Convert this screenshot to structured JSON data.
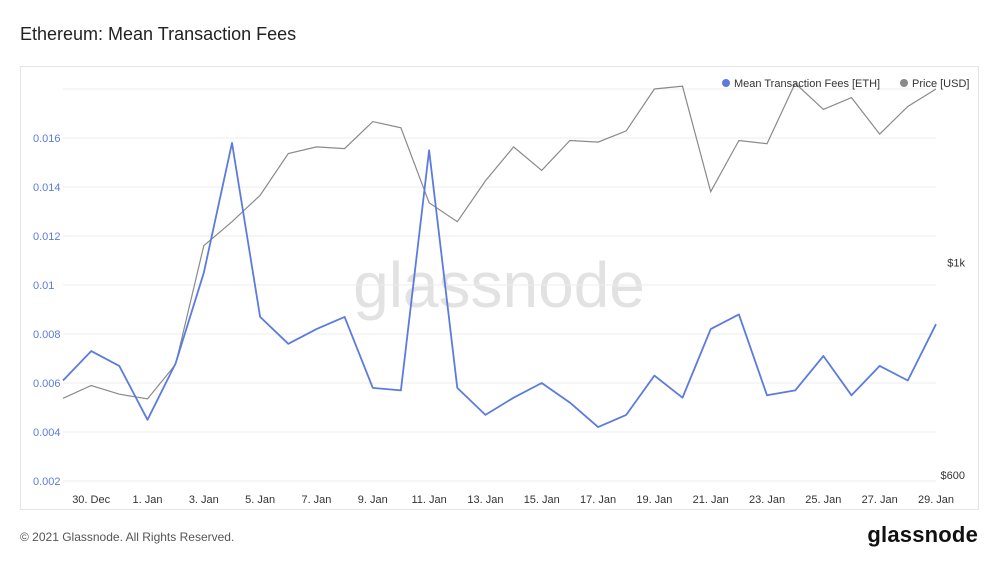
{
  "title": "Ethereum: Mean Transaction Fees",
  "footer": {
    "copyright": "© 2021 Glassnode. All Rights Reserved.",
    "logo": "glassnode"
  },
  "watermark": "glassnode",
  "colors": {
    "fees": "#5b7bdf",
    "price": "#8a8a8a",
    "left_axis_text": "#5b7bdf",
    "grid": "#ececec"
  },
  "chart_data": {
    "type": "line",
    "title": "Ethereum: Mean Transaction Fees",
    "x_ticks": [
      "30. Dec",
      "1. Jan",
      "3. Jan",
      "5. Jan",
      "7. Jan",
      "9. Jan",
      "11. Jan",
      "13. Jan",
      "15. Jan",
      "17. Jan",
      "19. Jan",
      "21. Jan",
      "23. Jan",
      "25. Jan",
      "27. Jan",
      "29. Jan"
    ],
    "y_left": {
      "ticks": [
        "0.002",
        "0.004",
        "0.006",
        "0.008",
        "0.01",
        "0.012",
        "0.014",
        "0.016"
      ],
      "min": 0.002,
      "max": 0.018
    },
    "y_right": {
      "ticks": [
        "$600",
        "$1k"
      ],
      "scale": "log",
      "min": 600,
      "max": 1500
    },
    "legend_position": "top-right",
    "grid": true,
    "series": [
      {
        "name": "Mean Transaction Fees [ETH]",
        "axis": "left",
        "values": [
          0.0061,
          0.0073,
          0.0067,
          0.0045,
          0.0068,
          0.0105,
          0.0158,
          0.0087,
          0.0076,
          0.0082,
          0.0087,
          0.0058,
          0.0057,
          0.0155,
          0.0058,
          0.0047,
          0.0054,
          0.006,
          0.0052,
          0.0042,
          0.0047,
          0.0063,
          0.0054,
          0.0082,
          0.0088,
          0.0055,
          0.0057,
          0.0071,
          0.0055,
          0.0067,
          0.0061,
          0.0084
        ]
      },
      {
        "name": "Price [USD]",
        "axis": "right",
        "values": [
          728,
          750,
          735,
          727,
          788,
          1040,
          1100,
          1170,
          1290,
          1310,
          1305,
          1390,
          1370,
          1150,
          1100,
          1210,
          1310,
          1240,
          1330,
          1325,
          1360,
          1500,
          1510,
          1180,
          1330,
          1320,
          1520,
          1430,
          1470,
          1350,
          1440,
          1500
        ]
      }
    ]
  }
}
